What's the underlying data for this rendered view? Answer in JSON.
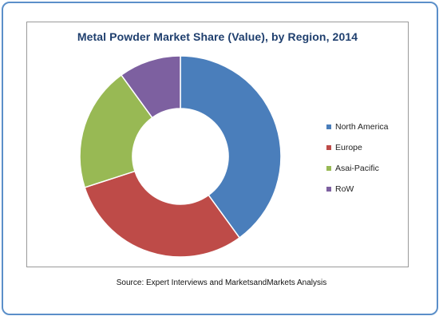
{
  "chart_data": {
    "type": "pie",
    "donut": true,
    "title": "Metal Powder Market Share (Value), by Region, 2014",
    "categories": [
      "North America",
      "Europe",
      "Asai-Pacific",
      "RoW"
    ],
    "values": [
      40,
      30,
      20,
      10
    ],
    "unit": "%",
    "colors": [
      "#4a7ebb",
      "#be4b48",
      "#98b954",
      "#7d60a0"
    ],
    "legend_position": "right"
  },
  "source": "Source: Expert Interviews and MarketsandMarkets Analysis"
}
